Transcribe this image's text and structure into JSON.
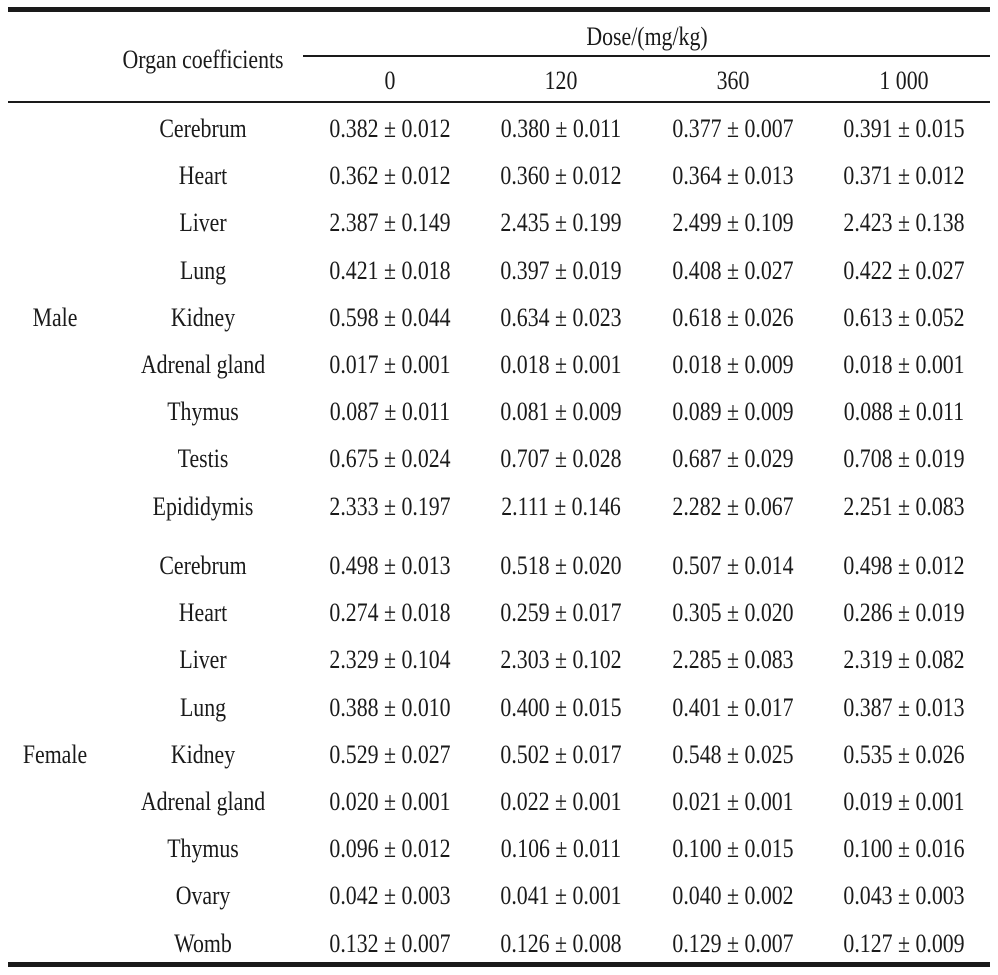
{
  "header": {
    "organ_label": "Organ coefficients",
    "dose_label": "Dose/(mg/kg)",
    "doses": [
      "0",
      "120",
      "360",
      "1 000"
    ]
  },
  "groups": [
    {
      "label": "Male",
      "rows": [
        {
          "organ": "Cerebrum",
          "values": [
            "0.382 ± 0.012",
            "0.380 ± 0.011",
            "0.377 ± 0.007",
            "0.391 ± 0.015"
          ]
        },
        {
          "organ": "Heart",
          "values": [
            "0.362 ± 0.012",
            "0.360 ± 0.012",
            "0.364 ± 0.013",
            "0.371 ± 0.012"
          ]
        },
        {
          "organ": "Liver",
          "values": [
            "2.387 ± 0.149",
            "2.435 ± 0.199",
            "2.499 ± 0.109",
            "2.423 ± 0.138"
          ]
        },
        {
          "organ": "Lung",
          "values": [
            "0.421 ± 0.018",
            "0.397 ± 0.019",
            "0.408 ± 0.027",
            "0.422 ± 0.027"
          ]
        },
        {
          "organ": "Kidney",
          "values": [
            "0.598 ± 0.044",
            "0.634 ± 0.023",
            "0.618 ± 0.026",
            "0.613 ± 0.052"
          ]
        },
        {
          "organ": "Adrenal gland",
          "values": [
            "0.017 ± 0.001",
            "0.018 ± 0.001",
            "0.018 ± 0.009",
            "0.018 ± 0.001"
          ]
        },
        {
          "organ": "Thymus",
          "values": [
            "0.087 ± 0.011",
            "0.081 ± 0.009",
            "0.089 ± 0.009",
            "0.088 ± 0.011"
          ]
        },
        {
          "organ": "Testis",
          "values": [
            "0.675 ± 0.024",
            "0.707 ± 0.028",
            "0.687 ± 0.029",
            "0.708 ± 0.019"
          ]
        },
        {
          "organ": "Epididymis",
          "values": [
            "2.333 ± 0.197",
            "2.111 ± 0.146",
            "2.282 ± 0.067",
            "2.251 ± 0.083"
          ]
        }
      ]
    },
    {
      "label": "Female",
      "rows": [
        {
          "organ": "Cerebrum",
          "values": [
            "0.498 ± 0.013",
            "0.518 ± 0.020",
            "0.507 ± 0.014",
            "0.498 ± 0.012"
          ]
        },
        {
          "organ": "Heart",
          "values": [
            "0.274 ± 0.018",
            "0.259 ± 0.017",
            "0.305 ± 0.020",
            "0.286 ± 0.019"
          ]
        },
        {
          "organ": "Liver",
          "values": [
            "2.329 ± 0.104",
            "2.303 ± 0.102",
            "2.285 ± 0.083",
            "2.319 ± 0.082"
          ]
        },
        {
          "organ": "Lung",
          "values": [
            "0.388 ± 0.010",
            "0.400 ± 0.015",
            "0.401 ± 0.017",
            "0.387 ± 0.013"
          ]
        },
        {
          "organ": "Kidney",
          "values": [
            "0.529 ± 0.027",
            "0.502 ± 0.017",
            "0.548 ± 0.025",
            "0.535 ± 0.026"
          ]
        },
        {
          "organ": "Adrenal gland",
          "values": [
            "0.020 ± 0.001",
            "0.022 ± 0.001",
            "0.021 ± 0.001",
            "0.019 ± 0.001"
          ]
        },
        {
          "organ": "Thymus",
          "values": [
            "0.096 ± 0.012",
            "0.106 ± 0.011",
            "0.100 ± 0.015",
            "0.100 ± 0.016"
          ]
        },
        {
          "organ": "Ovary",
          "values": [
            "0.042 ± 0.003",
            "0.041 ± 0.001",
            "0.040 ± 0.002",
            "0.043 ± 0.003"
          ]
        },
        {
          "organ": "Womb",
          "values": [
            "0.132 ± 0.007",
            "0.126 ± 0.008",
            "0.129 ± 0.007",
            "0.127 ± 0.009"
          ]
        }
      ]
    }
  ]
}
